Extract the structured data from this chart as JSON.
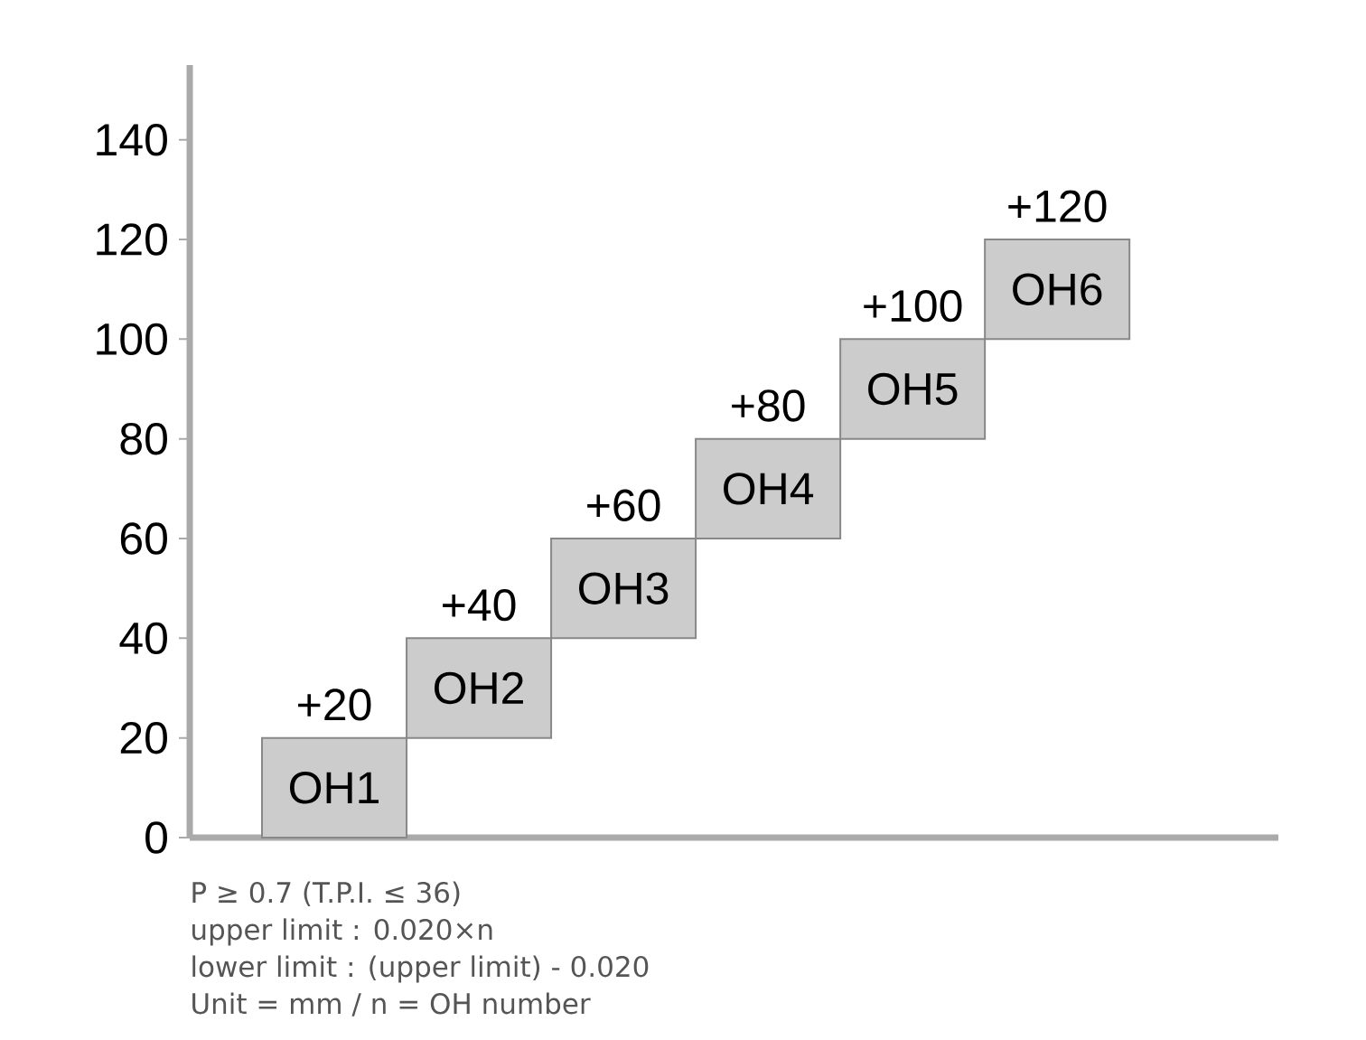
{
  "chart_data": {
    "type": "bar",
    "categories": [
      "OH1",
      "OH2",
      "OH3",
      "OH4",
      "OH5",
      "OH6"
    ],
    "base": [
      0,
      20,
      40,
      60,
      80,
      100
    ],
    "values": [
      20,
      20,
      20,
      20,
      20,
      20
    ],
    "value_labels": [
      "+20",
      "+40",
      "+60",
      "+80",
      "+100",
      "+120"
    ],
    "color": "#cccccc",
    "ylim": [
      0,
      155
    ],
    "yticks": [
      0,
      20,
      40,
      60,
      80,
      100,
      120,
      140
    ],
    "grid": false,
    "annotations": [
      "P ≥ 0.7 (T.P.I. ≤ 36)",
      "upper limit : 0.020×n",
      "lower limit : (upper limit) - 0.020",
      "Unit = mm / n = OH number"
    ]
  }
}
